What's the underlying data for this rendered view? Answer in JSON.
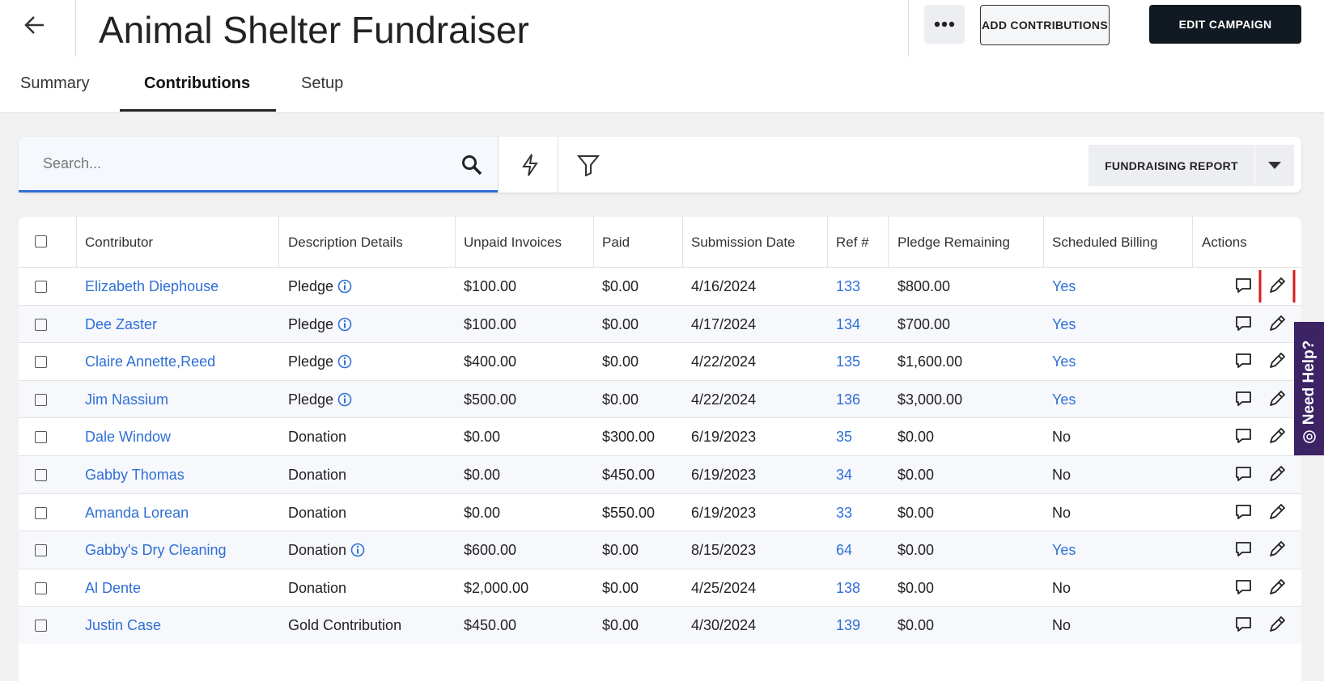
{
  "header": {
    "title": "Animal Shelter Fundraiser",
    "buttons": [
      "ADD CONTRIBUTIONS",
      "EDIT CAMPAIGN"
    ]
  },
  "tabs": [
    "Summary",
    "Contributions",
    "Setup"
  ],
  "toolbar": {
    "search_placeholder": "Search...",
    "report_button": "FUNDRAISING REPORT"
  },
  "table": {
    "columns": [
      "Contributor",
      "Description Details",
      "Unpaid Invoices",
      "Paid",
      "Submission Date",
      "Ref #",
      "Pledge Remaining",
      "Scheduled Billing",
      "Actions"
    ],
    "rows": [
      [
        "Elizabeth Diephouse",
        "Pledge",
        "$100.00",
        "$0.00",
        "4/16/2024",
        "133",
        "$800.00",
        "Yes"
      ],
      [
        "Dee Zaster",
        "Pledge",
        "$100.00",
        "$0.00",
        "4/17/2024",
        "134",
        "$700.00",
        "Yes"
      ],
      [
        "Claire Annette,Reed",
        "Pledge",
        "$400.00",
        "$0.00",
        "4/22/2024",
        "135",
        "$1,600.00",
        "Yes"
      ],
      [
        "Jim Nassium",
        "Pledge",
        "$500.00",
        "$0.00",
        "4/22/2024",
        "136",
        "$3,000.00",
        "Yes"
      ],
      [
        "Dale Window",
        "Donation",
        "$0.00",
        "$300.00",
        "6/19/2023",
        "35",
        "$0.00",
        "No"
      ],
      [
        "Gabby Thomas",
        "Donation",
        "$0.00",
        "$450.00",
        "6/19/2023",
        "34",
        "$0.00",
        "No"
      ],
      [
        "Amanda Lorean",
        "Donation",
        "$0.00",
        "$550.00",
        "6/19/2023",
        "33",
        "$0.00",
        "No"
      ],
      [
        "Gabby's Dry Cleaning",
        "Donation",
        "$600.00",
        "$0.00",
        "8/15/2023",
        "64",
        "$0.00",
        "Yes"
      ],
      [
        "Al Dente",
        "Donation",
        "$2,000.00",
        "$0.00",
        "4/25/2024",
        "138",
        "$0.00",
        "No"
      ],
      [
        "Justin Case",
        "Gold Contribution",
        "$450.00",
        "$0.00",
        "4/30/2024",
        "139",
        "$0.00",
        "No"
      ]
    ]
  },
  "help": {
    "label": "Need Help?"
  }
}
